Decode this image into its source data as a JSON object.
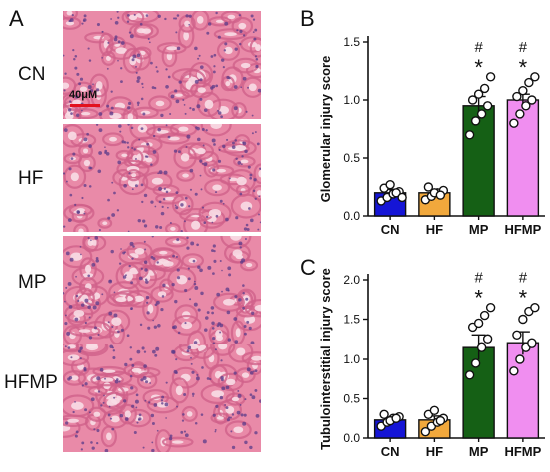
{
  "panel_a": {
    "letter": "A",
    "scale_label": "40μM",
    "rows": [
      {
        "label": "CN"
      },
      {
        "label": "HF"
      },
      {
        "label": "MP"
      },
      {
        "label": "HFMP"
      }
    ]
  },
  "panel_b": {
    "letter": "B"
  },
  "panel_c": {
    "letter": "C"
  },
  "colors": {
    "CN": "#1515d6",
    "HF": "#f1a83c",
    "MP": "#156015",
    "HFMP": "#f08ef0",
    "scale_bar": "#e3101e"
  },
  "chart_data": [
    {
      "type": "bar",
      "ylabel": "Glomerular injury score",
      "xlabel": "",
      "ylim": [
        0,
        1.5
      ],
      "yticks": [
        "0.0",
        "0.5",
        "1.0",
        "1.5"
      ],
      "categories": [
        "CN",
        "HF",
        "MP",
        "HFMP"
      ],
      "values": [
        0.2,
        0.2,
        0.95,
        1.0
      ],
      "error": [
        0.03,
        0.02,
        0.08,
        0.05
      ],
      "points": [
        [
          0.13,
          0.16,
          0.19,
          0.21,
          0.24,
          0.27,
          0.2,
          0.16
        ],
        [
          0.14,
          0.17,
          0.2,
          0.22,
          0.25,
          0.2,
          0.18
        ],
        [
          0.7,
          0.82,
          0.88,
          0.95,
          1.0,
          1.05,
          1.1,
          1.2
        ],
        [
          0.8,
          0.88,
          0.95,
          1.0,
          1.03,
          1.08,
          1.15,
          1.2
        ]
      ],
      "annotations": [
        {
          "category": "MP",
          "symbols": [
            "#",
            "*"
          ]
        },
        {
          "category": "HFMP",
          "symbols": [
            "#",
            "*"
          ]
        }
      ]
    },
    {
      "type": "bar",
      "ylabel": "Tubulointerstitial injury score",
      "xlabel": "",
      "ylim": [
        0,
        2.0
      ],
      "yticks": [
        "0.0",
        "0.5",
        "1.0",
        "1.5",
        "2.0"
      ],
      "categories": [
        "CN",
        "HF",
        "MP",
        "HFMP"
      ],
      "values": [
        0.23,
        0.23,
        1.15,
        1.2
      ],
      "error": [
        0.03,
        0.05,
        0.15,
        0.14
      ],
      "points": [
        [
          0.15,
          0.2,
          0.25,
          0.27,
          0.3,
          0.22,
          0.25
        ],
        [
          0.08,
          0.15,
          0.2,
          0.25,
          0.3,
          0.35,
          0.22
        ],
        [
          0.8,
          0.95,
          1.15,
          1.25,
          1.4,
          1.45,
          1.55,
          1.65
        ],
        [
          0.85,
          1.0,
          1.15,
          1.2,
          1.3,
          1.5,
          1.6,
          1.65
        ]
      ],
      "annotations": [
        {
          "category": "MP",
          "symbols": [
            "#",
            "*"
          ]
        },
        {
          "category": "HFMP",
          "symbols": [
            "#",
            "*"
          ]
        }
      ]
    }
  ]
}
